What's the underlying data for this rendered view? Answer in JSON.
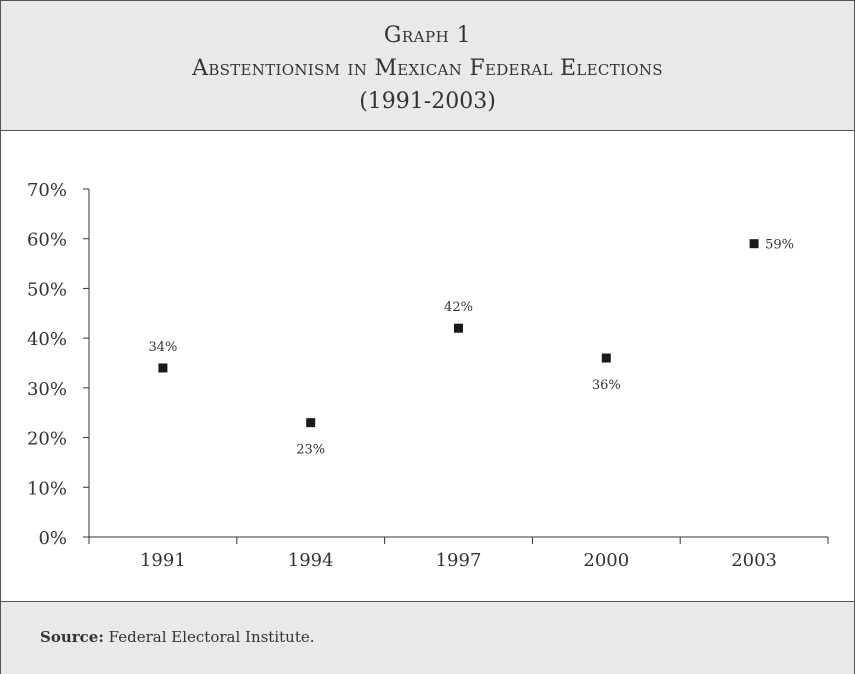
{
  "header": {
    "graph_label": "Graph 1",
    "title": "Abstentionism in Mexican Federal Elections",
    "subtitle": "(1991-2003)"
  },
  "chart_data": {
    "type": "scatter",
    "categories": [
      "1991",
      "1994",
      "1997",
      "2000",
      "2003"
    ],
    "values": [
      34,
      23,
      42,
      36,
      59
    ],
    "data_labels": [
      "34%",
      "23%",
      "42%",
      "36%",
      "59%"
    ],
    "label_positions": [
      "above",
      "below",
      "above",
      "below",
      "right"
    ],
    "y_ticks": [
      "0%",
      "10%",
      "20%",
      "30%",
      "40%",
      "50%",
      "60%",
      "70%"
    ],
    "ylim": [
      0,
      70
    ],
    "marker": "square",
    "grid": false,
    "legend": "none",
    "colors": {
      "marker": "#1a1a1a",
      "axis": "#333333",
      "text": "#333333"
    }
  },
  "footer": {
    "source_label": "Source:",
    "source_text": " Federal Electoral Institute."
  }
}
